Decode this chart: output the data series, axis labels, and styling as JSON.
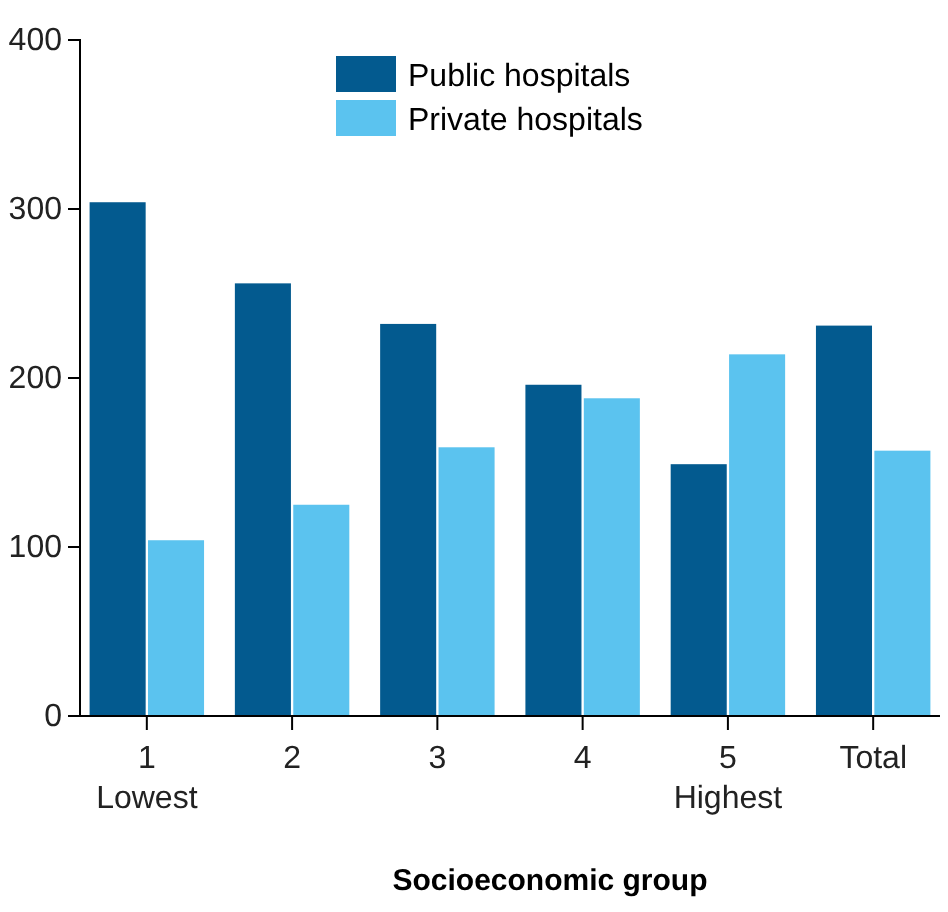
{
  "chart_data": {
    "type": "bar",
    "xlabel": "Socioeconomic group",
    "categories": [
      "1\nLowest",
      "2",
      "3",
      "4",
      "5\nHighest",
      "Total"
    ],
    "series": [
      {
        "name": "Public hospitals",
        "color": "#035a8f",
        "values": [
          304,
          256,
          232,
          196,
          149,
          231
        ]
      },
      {
        "name": "Private hospitals",
        "color": "#5bc3ef",
        "values": [
          104,
          125,
          159,
          188,
          214,
          157
        ]
      }
    ],
    "ylim": [
      0,
      400
    ],
    "yticks": [
      0,
      100,
      200,
      300,
      400
    ],
    "grid": false,
    "legend": "top"
  }
}
